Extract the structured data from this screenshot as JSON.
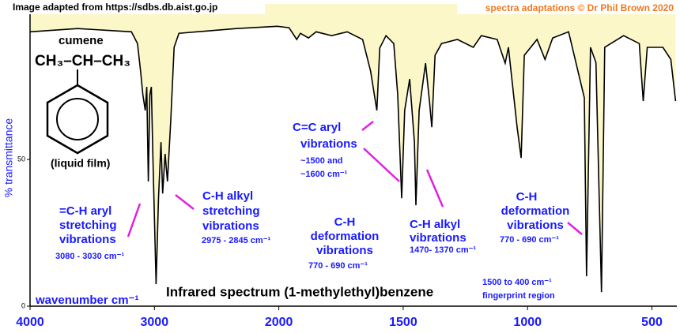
{
  "chart_data": {
    "type": "line",
    "title": "Infrared spectrum (1-methylethyl)benzene",
    "source": "Image adapted from https://sdbs.db.aist.go.jp",
    "credit": "spectra adaptations © Dr Phil Brown 2020",
    "ylabel": "% transmittance",
    "xlabel": "wavenumber  cm⁻¹",
    "molecule": {
      "name": "cumene",
      "formula": "CH₃–CH–CH₃",
      "state": "(liquid film)"
    },
    "annotations": [
      [
        "=C-H aryl",
        "stretching",
        "vibrations",
        "3080 - 3030 cm⁻¹"
      ],
      [
        "C-H alkyl",
        "stretching",
        "vibrations",
        "2975 - 2845 cm⁻¹"
      ],
      [
        "C-H",
        "deformation",
        "vibrations",
        "770 - 690 cm⁻¹"
      ],
      [
        "C=C aryl",
        "vibrations",
        "~1500 and",
        "~1600 cm⁻¹"
      ],
      [
        "C-H alkyl",
        "vibrations",
        "1470- 1370 cm⁻¹"
      ],
      [
        "C-H",
        "deformation",
        "vibrations",
        "770 - 690 cm⁻¹"
      ],
      [
        "1500 to 400 cm⁻¹",
        "fingerprint region"
      ]
    ],
    "x": [
      4000,
      3617,
      3185,
      3136,
      3111,
      3093,
      3074,
      3062,
      3049,
      3037,
      3025,
      3012,
      2987,
      2967,
      2947,
      2934,
      2914,
      2895,
      2868,
      2842,
      2803,
      2342,
      2013,
      1959,
      1928,
      1913,
      1881,
      1850,
      1788,
      1725,
      1663,
      1631,
      1606,
      1594,
      1569,
      1538,
      1522,
      1506,
      1494,
      1474,
      1455,
      1449,
      1436,
      1410,
      1394,
      1385,
      1372,
      1346,
      1282,
      1218,
      1186,
      1122,
      1090,
      1077,
      1042,
      1026,
      1013,
      962,
      930,
      899,
      835,
      772,
      763,
      747,
      725,
      703,
      690,
      614,
      551,
      535,
      519,
      456,
      424,
      405
    ],
    "series": [
      {
        "name": "transmittance",
        "color": "#000000",
        "values": [
          93.5,
          94.6,
          93.5,
          89.5,
          80.1,
          72,
          66.7,
          74.7,
          42.5,
          72,
          74.7,
          50.5,
          7.5,
          37.1,
          55.9,
          38.4,
          51.9,
          42.5,
          64,
          88.2,
          93,
          94.6,
          95.4,
          94.9,
          90.9,
          93,
          91.4,
          93.5,
          92.2,
          93.5,
          90.9,
          80.1,
          66.7,
          88,
          92.2,
          89.5,
          72,
          36.8,
          66.7,
          77.4,
          55.9,
          34.4,
          66.7,
          82.8,
          69.4,
          61,
          85.5,
          89.5,
          90.9,
          88.2,
          92.2,
          90.9,
          82.8,
          88.2,
          61,
          50.5,
          85.5,
          90.9,
          84.1,
          91.4,
          93.5,
          71,
          10.2,
          88.2,
          83,
          4.8,
          88.2,
          92.2,
          89.5,
          69.9,
          88.2,
          88.2,
          84.1,
          69.9
        ]
      }
    ],
    "fill": "#fbf7c8",
    "xlim": [
      4000,
      400
    ],
    "xticks": [
      4000,
      3000,
      2000,
      1500,
      1000,
      500
    ],
    "ylim": [
      0,
      103
    ],
    "yticks": [
      0,
      50
    ]
  }
}
